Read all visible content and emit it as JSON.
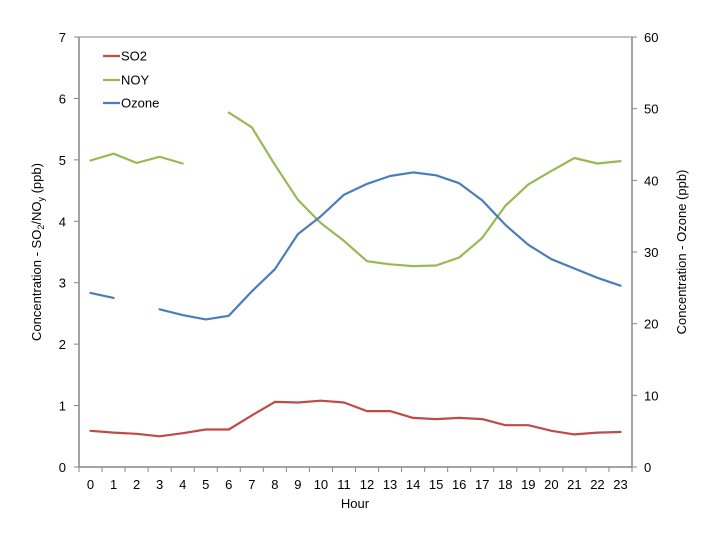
{
  "chart_data": {
    "type": "line",
    "title": "",
    "xlabel": "Hour",
    "ylabel": "Concentration - SO2/NOy (ppb)",
    "ylabel_right": "Concentration - Ozone (ppb)",
    "categories": [
      "0",
      "1",
      "2",
      "3",
      "4",
      "5",
      "6",
      "7",
      "8",
      "9",
      "10",
      "11",
      "12",
      "13",
      "14",
      "15",
      "16",
      "17",
      "18",
      "19",
      "20",
      "21",
      "22",
      "23"
    ],
    "ylim": [
      0,
      7
    ],
    "ylim_right": [
      0,
      60
    ],
    "yticks": [
      0,
      1,
      2,
      3,
      4,
      5,
      6,
      7
    ],
    "yticks_right": [
      0,
      10,
      20,
      30,
      40,
      50,
      60
    ],
    "grid": false,
    "legend_position": "top-left inside",
    "series": [
      {
        "name": "SO2",
        "axis": "left",
        "color": "#BE4B48",
        "values": [
          0.59,
          0.56,
          0.54,
          0.5,
          0.55,
          0.61,
          0.61,
          0.84,
          1.06,
          1.05,
          1.08,
          1.05,
          0.91,
          0.91,
          0.8,
          0.78,
          0.8,
          0.78,
          0.68,
          0.68,
          0.59,
          0.53,
          0.56,
          0.57
        ]
      },
      {
        "name": "NOY",
        "axis": "left",
        "color": "#98B954",
        "values": [
          4.99,
          5.1,
          4.95,
          5.05,
          4.94,
          null,
          5.77,
          5.53,
          4.92,
          4.35,
          3.97,
          3.68,
          3.35,
          3.3,
          3.27,
          3.28,
          3.41,
          3.73,
          4.25,
          4.6,
          4.82,
          5.03,
          4.94,
          4.98
        ]
      },
      {
        "name": "Ozone",
        "axis": "right",
        "color": "#4A7EBB",
        "values": [
          24.3,
          23.6,
          null,
          22.0,
          21.2,
          20.6,
          21.1,
          24.5,
          27.6,
          32.5,
          35.0,
          38.0,
          39.5,
          40.6,
          41.1,
          40.7,
          39.6,
          37.2,
          33.8,
          31.0,
          29.0,
          27.7,
          26.4,
          25.3
        ]
      }
    ]
  },
  "legend": {
    "items": [
      {
        "label": "SO2"
      },
      {
        "label": "NOY"
      },
      {
        "label": "Ozone"
      }
    ]
  },
  "axes": {
    "x_title": "Hour",
    "y_left_title_main": "Concentration - SO",
    "y_left_sub1": "2",
    "y_left_mid": "/NO",
    "y_left_sub2": "y",
    "y_left_end": " (ppb)",
    "y_right_title": "Concentration - Ozone (ppb)"
  }
}
